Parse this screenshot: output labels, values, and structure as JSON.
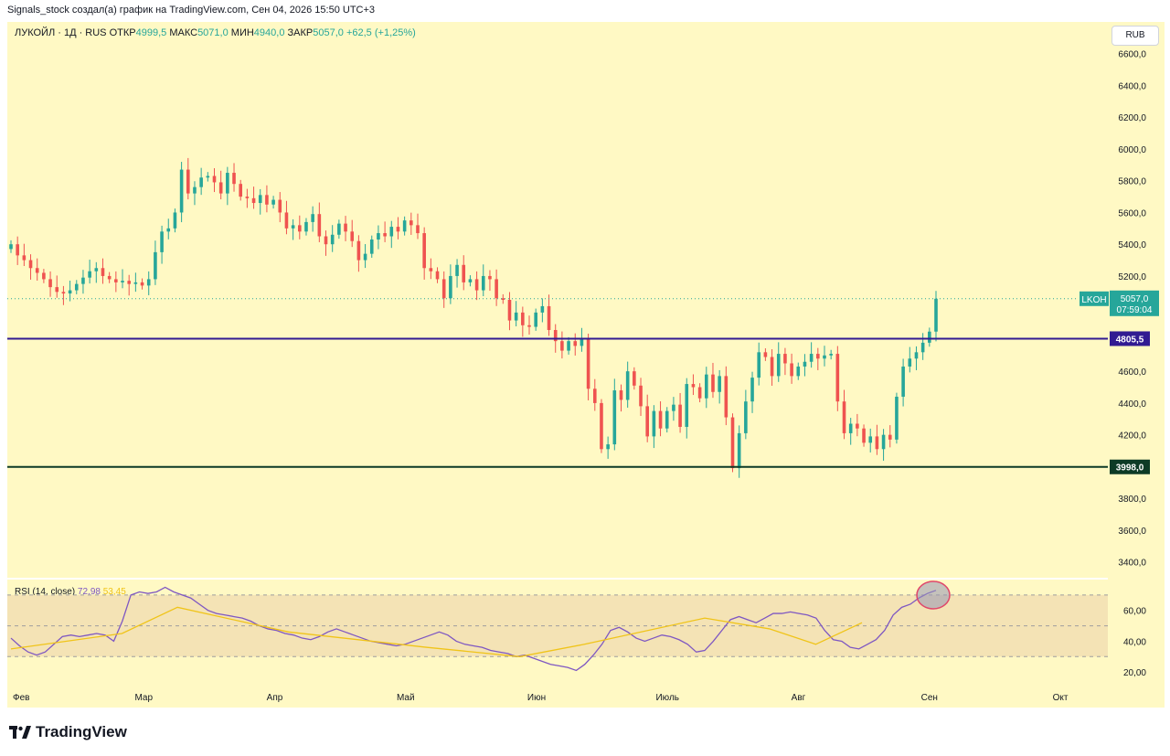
{
  "header": {
    "attribution": "Signals_stock создал(а) график на TradingView.com, Сен 04, 2026 15:50 UTC+3"
  },
  "legend": {
    "symbol": "ЛУКОЙЛ · 1Д · RUS",
    "open_label": "ОТКР",
    "open": "4999,5",
    "high_label": "МАКС",
    "high": "5071,0",
    "low_label": "МИН",
    "low": "4940,0",
    "close_label": "ЗАКР",
    "close": "5057,0",
    "change": "+62,5 (+1,25%)"
  },
  "currency_button": "RUB",
  "rsi_legend": {
    "name": "RSI (14, close)",
    "rsi_value": "72,98",
    "ma_value": "53,45"
  },
  "brand": "TradingView",
  "colors": {
    "up": "#26a69a",
    "down": "#ef5350",
    "rsi": "#7e57c2",
    "rsi_ma": "#f0c419",
    "bg": "#fff9c4"
  },
  "chart_data": {
    "type": "candlestick",
    "price_axis": {
      "min": 3300,
      "max": 6800,
      "ticks": [
        "6600,0",
        "6400,0",
        "6200,0",
        "6000,0",
        "5800,0",
        "5600,0",
        "5400,0",
        "5200,0",
        "4600,0",
        "4400,0",
        "4200,0",
        "3800,0",
        "3600,0",
        "3400,0"
      ]
    },
    "time_ticks": [
      "Фев",
      "Мар",
      "Апр",
      "Май",
      "Июн",
      "Июль",
      "Авг",
      "Сен",
      "Окт"
    ],
    "levels": [
      {
        "price": 4805.5,
        "label": "4805,5",
        "color": "#311b92"
      },
      {
        "price": 3998.0,
        "label": "3998,0",
        "color": "#0d3b26"
      }
    ],
    "last_price": {
      "symbol": "LKOH",
      "price": 5057.0,
      "label": "5057,0",
      "countdown": "07:59:04"
    },
    "candles_close": [
      5400,
      5330,
      5300,
      5250,
      5220,
      5180,
      5130,
      5100,
      5090,
      5110,
      5150,
      5190,
      5230,
      5250,
      5200,
      5180,
      5160,
      5170,
      5150,
      5160,
      5140,
      5180,
      5350,
      5480,
      5500,
      5600,
      5870,
      5720,
      5760,
      5820,
      5830,
      5790,
      5720,
      5850,
      5780,
      5700,
      5690,
      5660,
      5710,
      5650,
      5680,
      5600,
      5500,
      5520,
      5480,
      5540,
      5590,
      5450,
      5400,
      5460,
      5530,
      5480,
      5420,
      5300,
      5340,
      5430,
      5470,
      5450,
      5510,
      5480,
      5550,
      5520,
      5470,
      5250,
      5230,
      5180,
      5060,
      5200,
      5270,
      5160,
      5180,
      5110,
      5200,
      5180,
      5060,
      5050,
      4920,
      4970,
      4890,
      4880,
      4970,
      5010,
      4860,
      4790,
      4730,
      4790,
      4760,
      4800,
      4490,
      4400,
      4110,
      4140,
      4480,
      4420,
      4600,
      4510,
      4380,
      4190,
      4350,
      4240,
      4350,
      4390,
      4250,
      4520,
      4500,
      4430,
      4580,
      4470,
      4570,
      4310,
      3990,
      4210,
      4410,
      4560,
      4720,
      4690,
      4570,
      4710,
      4650,
      4570,
      4630,
      4660,
      4710,
      4680,
      4700,
      4710,
      4410,
      4210,
      4270,
      4240,
      4150,
      4190,
      4110,
      4200,
      4170,
      4440,
      4630,
      4680,
      4720,
      4780,
      4850,
      5057
    ],
    "rsi": {
      "ylim": [
        10,
        80
      ],
      "ticks": [
        "60,00",
        "40,00",
        "20,00"
      ],
      "bands": [
        70,
        50,
        30
      ],
      "values": [
        42,
        37,
        33,
        31,
        33,
        38,
        43,
        44,
        43,
        44,
        45,
        44,
        40,
        53,
        70,
        72,
        71,
        72,
        75,
        72,
        70,
        68,
        64,
        60,
        58,
        57,
        56,
        55,
        53,
        50,
        48,
        47,
        45,
        44,
        42,
        41,
        43,
        46,
        48,
        46,
        44,
        42,
        40,
        39,
        38,
        37,
        38,
        40,
        42,
        44,
        46,
        44,
        40,
        38,
        37,
        36,
        34,
        33,
        32,
        30,
        31,
        29,
        27,
        25,
        24,
        23,
        21,
        25,
        31,
        38,
        47,
        49,
        46,
        42,
        40,
        42,
        44,
        43,
        41,
        38,
        33,
        34,
        40,
        47,
        54,
        56,
        54,
        52,
        55,
        58,
        58,
        59,
        58,
        57,
        55,
        47,
        41,
        40,
        36,
        35,
        38,
        41,
        47,
        57,
        62,
        64,
        68,
        71,
        73
      ]
    },
    "rsi_ma_anchors": [
      [
        0,
        35
      ],
      [
        0.12,
        45
      ],
      [
        0.18,
        62
      ],
      [
        0.3,
        46
      ],
      [
        0.45,
        36
      ],
      [
        0.55,
        30
      ],
      [
        0.62,
        38
      ],
      [
        0.75,
        55
      ],
      [
        0.82,
        48
      ],
      [
        0.87,
        38
      ],
      [
        0.92,
        52
      ]
    ]
  }
}
